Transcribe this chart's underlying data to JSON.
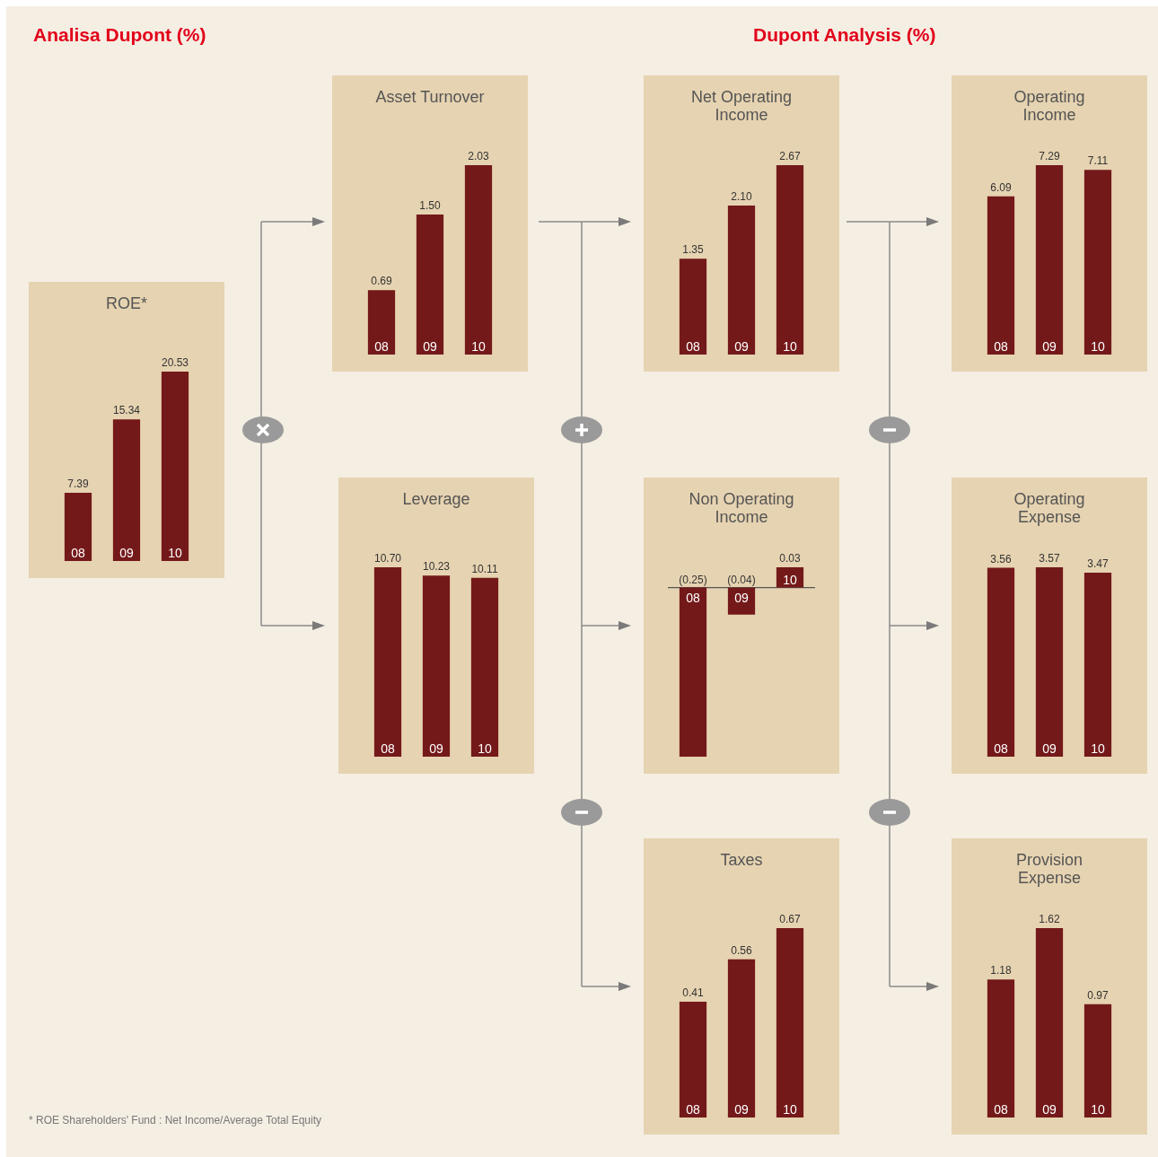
{
  "chart_data": [
    {
      "type": "other",
      "title": "Analisa Dupont (%)",
      "subtitle": "Dupont Analysis (%)",
      "annotations": [
        "* ROE Shareholders' Fund : Net Income/Average Total Equity"
      ]
    },
    {
      "type": "bar",
      "title": "ROE*",
      "categories": [
        "08",
        "09",
        "10"
      ],
      "values": [
        7.39,
        15.34,
        20.53
      ],
      "value_labels": [
        "7.39",
        "15.34",
        "20.53"
      ],
      "color": "#74191a"
    },
    {
      "type": "bar",
      "title": "Asset Turnover",
      "categories": [
        "08",
        "09",
        "10"
      ],
      "values": [
        0.69,
        1.5,
        2.03
      ],
      "value_labels": [
        "0.69",
        "1.50",
        "2.03"
      ],
      "color": "#74191a"
    },
    {
      "type": "bar",
      "title": "Leverage",
      "categories": [
        "08",
        "09",
        "10"
      ],
      "values": [
        10.7,
        10.23,
        10.11
      ],
      "value_labels": [
        "10.70",
        "10.23",
        "10.11"
      ],
      "color": "#74191a"
    },
    {
      "type": "bar",
      "title": "Net Operating Income",
      "categories": [
        "08",
        "09",
        "10"
      ],
      "values": [
        1.35,
        2.1,
        2.67
      ],
      "value_labels": [
        "1.35",
        "2.10",
        "2.67"
      ],
      "color": "#74191a"
    },
    {
      "type": "bar",
      "title": "Non Operating Income",
      "categories": [
        "08",
        "09",
        "10"
      ],
      "values": [
        -0.25,
        -0.04,
        0.03
      ],
      "value_labels": [
        "(0.25)",
        "(0.04)",
        "0.03"
      ],
      "color": "#74191a"
    },
    {
      "type": "bar",
      "title": "Taxes",
      "categories": [
        "08",
        "09",
        "10"
      ],
      "values": [
        0.41,
        0.56,
        0.67
      ],
      "value_labels": [
        "0.41",
        "0.56",
        "0.67"
      ],
      "color": "#74191a"
    },
    {
      "type": "bar",
      "title": "Operating Income",
      "categories": [
        "08",
        "09",
        "10"
      ],
      "values": [
        6.09,
        7.29,
        7.11
      ],
      "value_labels": [
        "6.09",
        "7.29",
        "7.11"
      ],
      "color": "#74191a"
    },
    {
      "type": "bar",
      "title": "Operating Expense",
      "categories": [
        "08",
        "09",
        "10"
      ],
      "values": [
        3.56,
        3.57,
        3.47
      ],
      "value_labels": [
        "3.56",
        "3.57",
        "3.47"
      ],
      "color": "#74191a"
    },
    {
      "type": "bar",
      "title": "Provision Expense",
      "categories": [
        "08",
        "09",
        "10"
      ],
      "values": [
        1.18,
        1.62,
        0.97
      ],
      "value_labels": [
        "1.18",
        "1.62",
        "0.97"
      ],
      "color": "#74191a"
    }
  ]
}
